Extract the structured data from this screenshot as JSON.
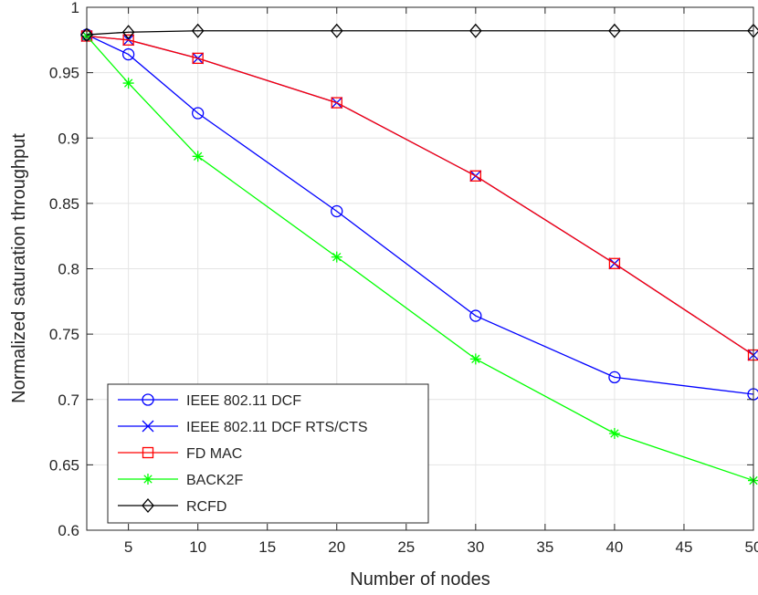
{
  "chart_data": {
    "type": "line",
    "title": "",
    "xlabel": "Number of nodes",
    "ylabel": "Normalized saturation throughput",
    "xlim": [
      2,
      50
    ],
    "ylim": [
      0.6,
      1
    ],
    "grid": true,
    "legend_position": "bottom-left",
    "x_ticks": [
      5,
      10,
      15,
      20,
      25,
      30,
      35,
      40,
      45,
      50
    ],
    "y_ticks": [
      0.6,
      0.65,
      0.7,
      0.75,
      0.8,
      0.85,
      0.9,
      0.95,
      1
    ],
    "x_tick_labels": [
      "5",
      "10",
      "15",
      "20",
      "25",
      "30",
      "35",
      "40",
      "45",
      "50"
    ],
    "y_tick_labels": [
      "0.6",
      "0.65",
      "0.7",
      "0.75",
      "0.8",
      "0.85",
      "0.9",
      "0.95",
      "1"
    ],
    "x": [
      2,
      5,
      10,
      20,
      30,
      40,
      50
    ],
    "series": [
      {
        "name": "IEEE 802.11 DCF",
        "color": "#0000ff",
        "marker": "circle",
        "values": [
          0.979,
          0.964,
          0.919,
          0.844,
          0.764,
          0.717,
          0.704
        ]
      },
      {
        "name": "IEEE 802.11 DCF RTS/CTS",
        "color": "#0000ff",
        "marker": "x",
        "values": [
          0.978,
          0.975,
          0.961,
          0.927,
          0.871,
          0.804,
          0.734
        ]
      },
      {
        "name": "FD MAC",
        "color": "#ff0000",
        "marker": "square",
        "values": [
          0.978,
          0.975,
          0.961,
          0.927,
          0.871,
          0.804,
          0.734
        ]
      },
      {
        "name": "BACK2F",
        "color": "#00ff00",
        "marker": "asterisk",
        "values": [
          0.978,
          0.942,
          0.886,
          0.809,
          0.731,
          0.674,
          0.638
        ]
      },
      {
        "name": "RCFD",
        "color": "#000000",
        "marker": "diamond",
        "values": [
          0.979,
          0.981,
          0.982,
          0.982,
          0.982,
          0.982,
          0.982
        ]
      }
    ]
  }
}
